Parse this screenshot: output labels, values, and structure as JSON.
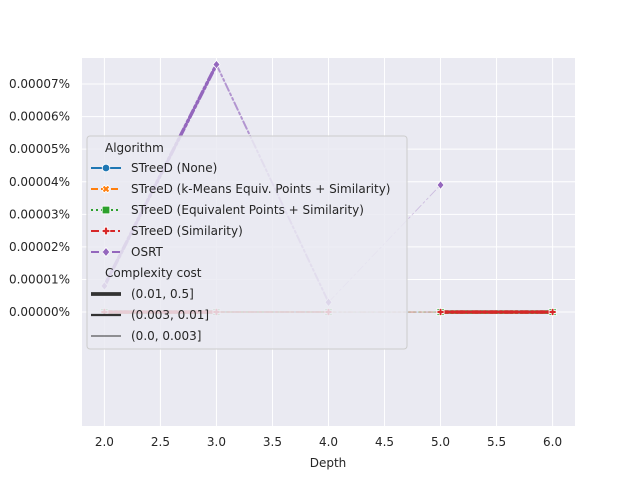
{
  "chart_data": {
    "type": "line",
    "xlabel": "Depth",
    "ylabel": "",
    "xlim": [
      1.8,
      6.2
    ],
    "ylim": [
      -3.5e-06,
      7.8e-06
    ],
    "x_ticks": [
      2.0,
      2.5,
      3.0,
      3.5,
      4.0,
      4.5,
      5.0,
      5.5,
      6.0
    ],
    "x_tick_labels": [
      "2.0",
      "2.5",
      "3.0",
      "3.5",
      "4.0",
      "4.5",
      "5.0",
      "5.5",
      "6.0"
    ],
    "y_ticks": [
      0,
      1e-06,
      2e-06,
      3e-06,
      4e-06,
      5e-06,
      6e-06,
      7e-06
    ],
    "y_tick_labels": [
      "0.00000%",
      "0.00001%",
      "0.00002%",
      "0.00003%",
      "0.00004%",
      "0.00005%",
      "0.00006%",
      "0.00007%"
    ],
    "grid": true,
    "legend_placement": "center-left",
    "legend": {
      "title_algorithm": "Algorithm",
      "title_cost": "Complexity cost",
      "cost_entries": [
        "(0.01, 0.5]",
        "(0.003, 0.01]",
        "(0.0, 0.003]"
      ]
    },
    "series": [
      {
        "name": "STreeD (None)",
        "color": "#1f77b4",
        "marker": "circle",
        "dash": "solid",
        "x": [
          2,
          3,
          4,
          5,
          6
        ],
        "y": [
          0,
          0,
          0,
          0,
          0
        ]
      },
      {
        "name": "STreeD (k-Means Equiv. Points + Similarity)",
        "color": "#ff7f0e",
        "marker": "x",
        "dash": "dashed",
        "x": [
          2,
          3,
          4,
          5,
          6
        ],
        "y": [
          0,
          0,
          0,
          0,
          0
        ]
      },
      {
        "name": "STreeD (Equivalent Points + Similarity)",
        "color": "#2ca02c",
        "marker": "square",
        "dash": "dotted",
        "x": [
          2,
          3,
          4,
          5,
          6
        ],
        "y": [
          0,
          0,
          0,
          0,
          0
        ]
      },
      {
        "name": "STreeD (Similarity)",
        "color": "#d62728",
        "marker": "plus",
        "dash": "dashdot",
        "x": [
          2,
          3,
          4,
          5,
          6
        ],
        "y": [
          0,
          0,
          0,
          0,
          0
        ]
      },
      {
        "name": "OSRT",
        "color": "#9467bd",
        "marker": "diamond",
        "dash": "dashdotdot",
        "x": [
          2,
          3,
          4,
          5
        ],
        "y": [
          8e-07,
          7.6e-06,
          3e-07,
          3.9e-06
        ]
      }
    ]
  }
}
